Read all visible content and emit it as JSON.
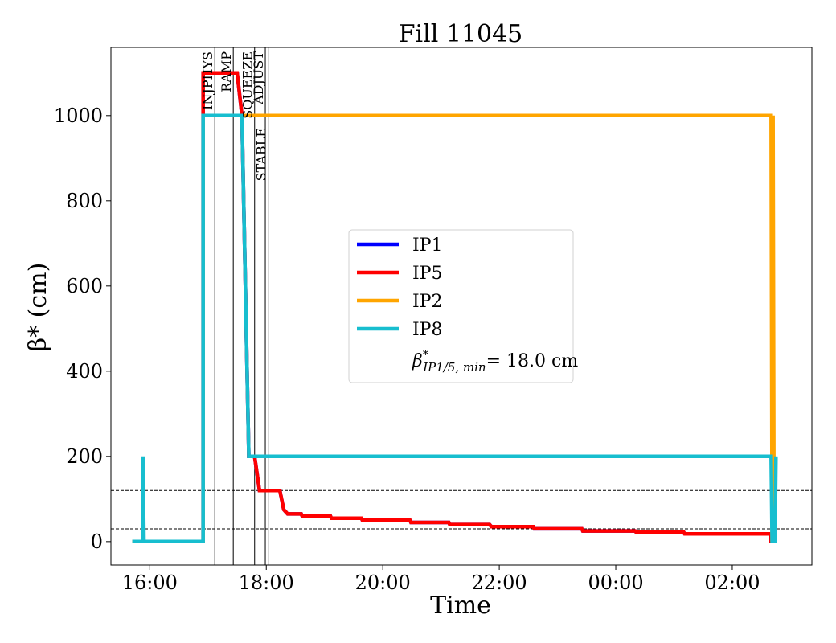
{
  "chart_data": {
    "type": "line",
    "title": "Fill 11045",
    "xlabel": "Time",
    "ylabel": "β* (cm)",
    "x_ticks": [
      "16:00",
      "18:00",
      "20:00",
      "22:00",
      "00:00",
      "02:00"
    ],
    "y_ticks": [
      "0",
      "200",
      "400",
      "600",
      "800",
      "1000"
    ],
    "xlim": [
      "15:20",
      "03:22"
    ],
    "ylim": [
      -55,
      1160
    ],
    "grid": false,
    "legend_position": "center",
    "reference_lines": [
      120,
      30
    ],
    "phases": [
      {
        "label": "INJPHYS",
        "time": "17:07"
      },
      {
        "label": "RAMP",
        "time": "17:26"
      },
      {
        "label": "SQUEEZE",
        "time": "17:48"
      },
      {
        "label": "ADJUST",
        "time": "17:59"
      },
      {
        "label": "STABLE",
        "time": "18:02"
      }
    ],
    "series": [
      {
        "name": "IP1",
        "color": "#0000ff",
        "points": [
          [
            "15:42",
            0
          ],
          [
            "16:55",
            0
          ],
          [
            "16:55",
            1100
          ],
          [
            "17:30",
            1100
          ],
          [
            "17:35",
            1000
          ],
          [
            "17:42",
            200
          ],
          [
            "17:48",
            200
          ],
          [
            "17:53",
            120
          ],
          [
            "18:14",
            120
          ],
          [
            "18:18",
            75
          ],
          [
            "18:22",
            65
          ],
          [
            "18:36",
            65
          ],
          [
            "18:37",
            60
          ],
          [
            "19:06",
            60
          ],
          [
            "19:07",
            55
          ],
          [
            "19:38",
            55
          ],
          [
            "19:39",
            50
          ],
          [
            "20:28",
            50
          ],
          [
            "20:29",
            45
          ],
          [
            "21:08",
            45
          ],
          [
            "21:09",
            40
          ],
          [
            "21:50",
            40
          ],
          [
            "21:52",
            35
          ],
          [
            "22:35",
            35
          ],
          [
            "22:36",
            30
          ],
          [
            "23:25",
            30
          ],
          [
            "23:26",
            25
          ],
          [
            "00:20",
            25
          ],
          [
            "00:21",
            22
          ],
          [
            "01:10",
            22
          ],
          [
            "01:11",
            18
          ],
          [
            "02:40",
            18
          ],
          [
            "02:40",
            0
          ],
          [
            "02:45",
            0
          ]
        ]
      },
      {
        "name": "IP5",
        "color": "#ff0000",
        "points": [
          [
            "15:42",
            0
          ],
          [
            "16:55",
            0
          ],
          [
            "16:55",
            1100
          ],
          [
            "17:30",
            1100
          ],
          [
            "17:35",
            1000
          ],
          [
            "17:42",
            200
          ],
          [
            "17:48",
            200
          ],
          [
            "17:53",
            120
          ],
          [
            "18:14",
            120
          ],
          [
            "18:18",
            75
          ],
          [
            "18:22",
            65
          ],
          [
            "18:36",
            65
          ],
          [
            "18:37",
            60
          ],
          [
            "19:06",
            60
          ],
          [
            "19:07",
            55
          ],
          [
            "19:38",
            55
          ],
          [
            "19:39",
            50
          ],
          [
            "20:28",
            50
          ],
          [
            "20:29",
            45
          ],
          [
            "21:08",
            45
          ],
          [
            "21:09",
            40
          ],
          [
            "21:50",
            40
          ],
          [
            "21:52",
            35
          ],
          [
            "22:35",
            35
          ],
          [
            "22:36",
            30
          ],
          [
            "23:25",
            30
          ],
          [
            "23:26",
            25
          ],
          [
            "00:20",
            25
          ],
          [
            "00:21",
            22
          ],
          [
            "01:10",
            22
          ],
          [
            "01:11",
            18
          ],
          [
            "02:40",
            18
          ],
          [
            "02:40",
            0
          ],
          [
            "02:45",
            0
          ]
        ]
      },
      {
        "name": "IP2",
        "color": "#ffa500",
        "points": [
          [
            "15:42",
            0
          ],
          [
            "16:55",
            0
          ],
          [
            "16:55",
            1000
          ],
          [
            "02:40",
            1000
          ],
          [
            "02:41",
            0
          ],
          [
            "02:42",
            1000
          ],
          [
            "02:43",
            0
          ],
          [
            "02:45",
            0
          ]
        ]
      },
      {
        "name": "IP8",
        "color": "#17becf",
        "points": [
          [
            "15:42",
            0
          ],
          [
            "15:53",
            0
          ],
          [
            "15:53",
            200
          ],
          [
            "15:54",
            0
          ],
          [
            "16:55",
            0
          ],
          [
            "16:55",
            1000
          ],
          [
            "17:35",
            1000
          ],
          [
            "17:42",
            200
          ],
          [
            "02:40",
            200
          ],
          [
            "02:41",
            0
          ],
          [
            "02:44",
            0
          ],
          [
            "02:45",
            200
          ]
        ]
      }
    ],
    "legend": {
      "entries": [
        "IP1",
        "IP5",
        "IP2",
        "IP8"
      ],
      "note": "β*IP1/5, min = 18.0 cm"
    }
  }
}
